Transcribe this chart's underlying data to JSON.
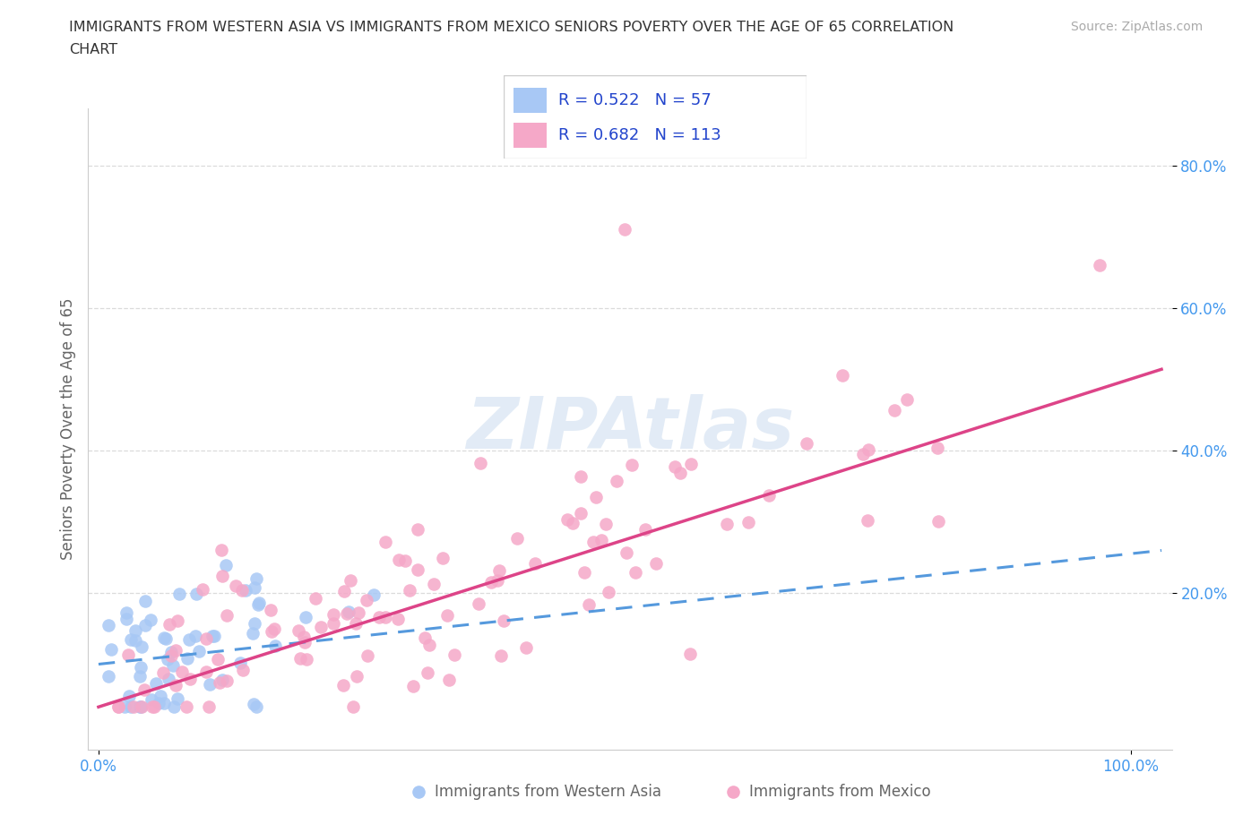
{
  "title_line1": "IMMIGRANTS FROM WESTERN ASIA VS IMMIGRANTS FROM MEXICO SENIORS POVERTY OVER THE AGE OF 65 CORRELATION",
  "title_line2": "CHART",
  "source": "Source: ZipAtlas.com",
  "ylabel": "Seniors Poverty Over the Age of 65",
  "xlim": [
    -0.01,
    1.04
  ],
  "ylim": [
    -0.02,
    0.88
  ],
  "r_wa": 0.522,
  "n_wa": 57,
  "r_mx": 0.682,
  "n_mx": 113,
  "blue_scatter": "#a8c8f5",
  "pink_scatter": "#f5a8c8",
  "blue_line": "#5599dd",
  "pink_line": "#dd4488",
  "title_color": "#333333",
  "legend_text_color": "#2244cc",
  "watermark_color": "#d0dff0",
  "grid_color": "#cccccc",
  "axis_tick_color": "#4499ee",
  "ylabel_color": "#666666",
  "bottom_label_color": "#666666"
}
